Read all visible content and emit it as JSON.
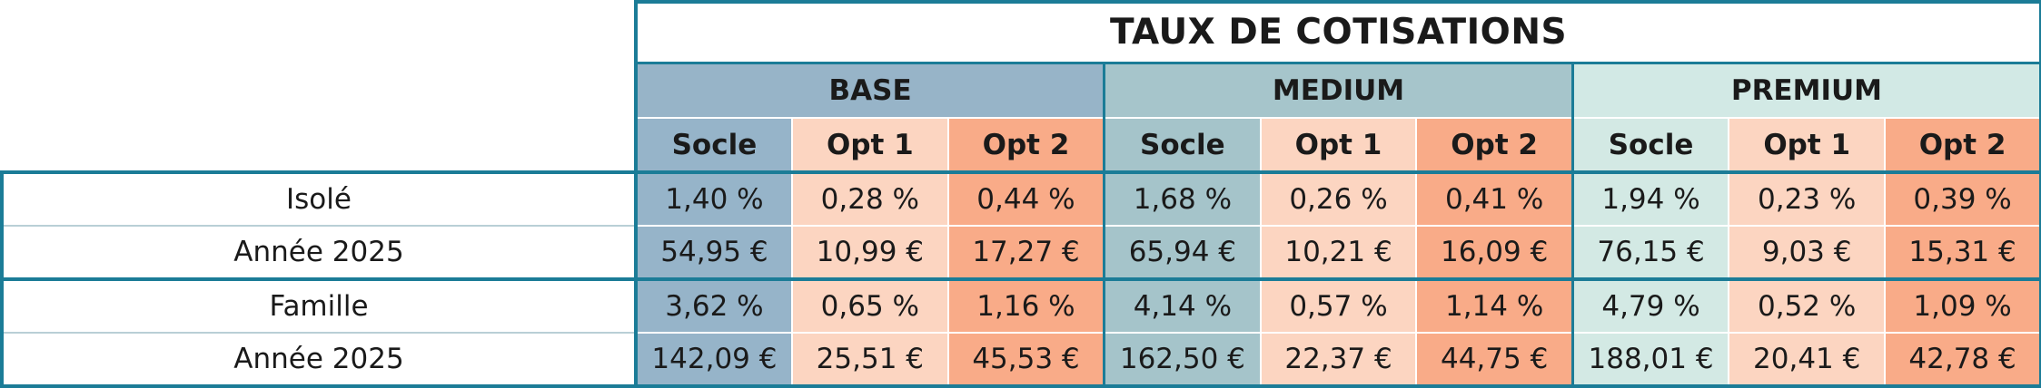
{
  "title": "TAUX DE COTISATIONS",
  "plans": [
    {
      "name": "BASE",
      "options": [
        "Socle",
        "Opt 1",
        "Opt 2"
      ]
    },
    {
      "name": "MEDIUM",
      "options": [
        "Socle",
        "Opt 1",
        "Opt 2"
      ]
    },
    {
      "name": "PREMIUM",
      "options": [
        "Socle",
        "Opt 1",
        "Opt 2"
      ]
    }
  ],
  "rows": [
    {
      "label": "Isolé",
      "values": [
        "1,40 %",
        "0,28 %",
        "0,44 %",
        "1,68 %",
        "0,26 %",
        "0,41 %",
        "1,94 %",
        "0,23 %",
        "0,39 %"
      ]
    },
    {
      "label": "Année 2025",
      "values": [
        "54,95 €",
        "10,99 €",
        "17,27 €",
        "65,94 €",
        "10,21 €",
        "16,09 €",
        "76,15 €",
        "9,03 €",
        "15,31 €"
      ]
    },
    {
      "label": "Famille",
      "values": [
        "3,62 %",
        "0,65 %",
        "1,16 %",
        "4,14 %",
        "0,57 %",
        "1,14 %",
        "4,79 %",
        "0,52 %",
        "1,09 %"
      ]
    },
    {
      "label": "Année 2025",
      "values": [
        "142,09 €",
        "25,51 €",
        "45,53 €",
        "162,50 €",
        "22,37 €",
        "44,75 €",
        "188,01 €",
        "20,41 €",
        "42,78 €"
      ]
    }
  ],
  "colors": {
    "border": "#1b7c97",
    "base": "#96b4c9",
    "medium": "#a5c4ca",
    "premium": "#d3e9e4",
    "opt1": "#fcd5c1",
    "opt2": "#f9ab88"
  }
}
